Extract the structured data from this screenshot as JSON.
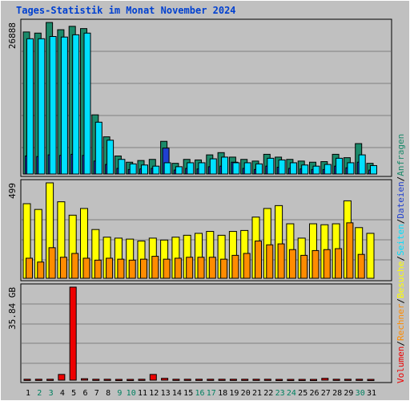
{
  "title": "Tages-Statistik im Monat November 2024",
  "colors": {
    "hits": "#1a8a6a",
    "files": "#2040d0",
    "pages": "#00e0ff",
    "visits": "#ffff00",
    "sites": "#ff8c00",
    "kbytes": "#ee0000",
    "weekend_label": "#008060",
    "weekday_label": "#000000",
    "grid": "#808080",
    "panel_bg": "#c0c0c0"
  },
  "legend": {
    "top": "Anfragen",
    "sep1": "/",
    "middle1": "Dateien",
    "sep2": "/",
    "middle2": "Seiten",
    "sep3": "/",
    "middle3": "Besuche",
    "sep4": "/",
    "middle4": "Rechner",
    "sep5": "/",
    "bottom": "Volumen"
  },
  "chart_data": [
    {
      "type": "bar",
      "title": "",
      "ymax_label": "26888",
      "ylim": [
        0,
        26888
      ],
      "categories": [
        "1",
        "2",
        "3",
        "4",
        "5",
        "6",
        "7",
        "8",
        "9",
        "10",
        "11",
        "12",
        "13",
        "14",
        "15",
        "16",
        "17",
        "18",
        "19",
        "20",
        "21",
        "22",
        "23",
        "24",
        "25",
        "26",
        "27",
        "28",
        "29",
        "30",
        "31"
      ],
      "weekend_days": [
        "2",
        "3",
        "9",
        "10",
        "16",
        "17",
        "23",
        "24",
        "30"
      ],
      "series": [
        {
          "name": "Anfragen",
          "values": [
            25200,
            25000,
            26888,
            25600,
            26200,
            25800,
            10500,
            6600,
            3200,
            2100,
            2400,
            2600,
            5800,
            1900,
            2600,
            2500,
            3400,
            3800,
            3000,
            2600,
            2300,
            3500,
            3000,
            2600,
            2300,
            2100,
            2200,
            3500,
            2900,
            5400,
            1900
          ]
        },
        {
          "name": "Dateien",
          "values": [
            3200,
            3100,
            3400,
            3300,
            3500,
            3300,
            2300,
            1700,
            1000,
            800,
            900,
            1000,
            4600,
            700,
            1000,
            900,
            1300,
            1400,
            2100,
            1000,
            800,
            1400,
            1200,
            1000,
            900,
            800,
            800,
            1400,
            1100,
            2100,
            700
          ]
        },
        {
          "name": "Seiten",
          "values": [
            24000,
            24000,
            24400,
            24300,
            24700,
            25000,
            9200,
            6000,
            2600,
            1800,
            1600,
            1400,
            2000,
            1300,
            2000,
            2000,
            2700,
            3000,
            2000,
            2000,
            1800,
            2800,
            2500,
            2000,
            1600,
            1400,
            1700,
            2800,
            2000,
            3400,
            1500
          ]
        }
      ]
    },
    {
      "type": "bar",
      "title": "",
      "ymax_label": "499",
      "ylim": [
        0,
        499
      ],
      "categories": [
        "1",
        "2",
        "3",
        "4",
        "5",
        "6",
        "7",
        "8",
        "9",
        "10",
        "11",
        "12",
        "13",
        "14",
        "15",
        "16",
        "17",
        "18",
        "19",
        "20",
        "21",
        "22",
        "23",
        "24",
        "25",
        "26",
        "27",
        "28",
        "29",
        "30",
        "31"
      ],
      "series": [
        {
          "name": "Besuche",
          "values": [
            390,
            360,
            499,
            400,
            330,
            365,
            255,
            215,
            210,
            205,
            195,
            210,
            200,
            215,
            225,
            235,
            245,
            225,
            245,
            250,
            320,
            365,
            380,
            285,
            210,
            285,
            280,
            285,
            405,
            265,
            235
          ]
        },
        {
          "name": "Rechner",
          "values": [
            105,
            85,
            160,
            110,
            130,
            105,
            95,
            105,
            100,
            95,
            100,
            115,
            100,
            105,
            110,
            110,
            110,
            100,
            120,
            130,
            195,
            175,
            180,
            150,
            120,
            145,
            150,
            155,
            290,
            125,
            0
          ]
        }
      ]
    },
    {
      "type": "bar",
      "title": "",
      "ymax_label": "35.84 GB",
      "ylim": [
        0,
        35.84
      ],
      "categories": [
        "1",
        "2",
        "3",
        "4",
        "5",
        "6",
        "7",
        "8",
        "9",
        "10",
        "11",
        "12",
        "13",
        "14",
        "15",
        "16",
        "17",
        "18",
        "19",
        "20",
        "21",
        "22",
        "23",
        "24",
        "25",
        "26",
        "27",
        "28",
        "29",
        "30",
        "31"
      ],
      "series": [
        {
          "name": "Volumen",
          "values": [
            0.35,
            0.35,
            0.35,
            2.2,
            35.84,
            0.55,
            0.35,
            0.35,
            0.3,
            0.3,
            0.35,
            2.2,
            0.7,
            0.35,
            0.35,
            0.35,
            0.35,
            0.35,
            0.35,
            0.35,
            0.35,
            0.35,
            0.3,
            0.3,
            0.3,
            0.3,
            0.7,
            0.35,
            0.35,
            0.35,
            0.3
          ]
        }
      ]
    }
  ]
}
